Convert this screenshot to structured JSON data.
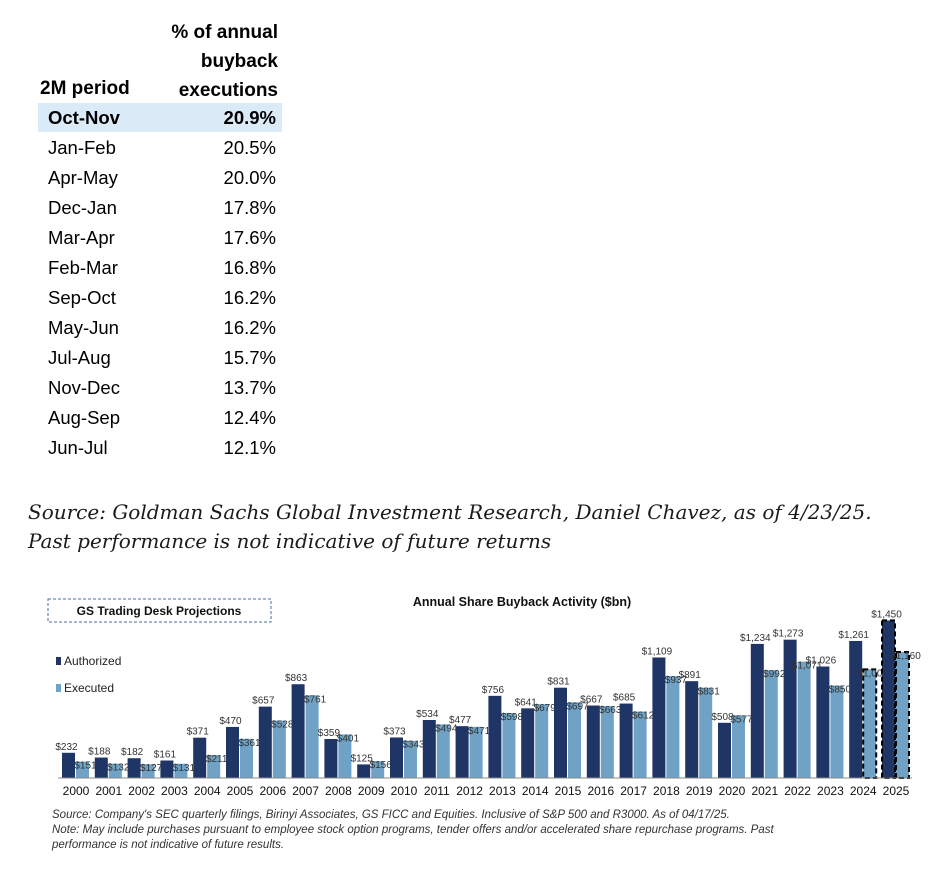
{
  "table": {
    "header_period": "2M period",
    "header_pct": [
      "% of annual",
      "buyback",
      "executions"
    ],
    "rows": [
      {
        "period": "Oct-Nov",
        "value": "20.9%"
      },
      {
        "period": "Jan-Feb",
        "value": "20.5%"
      },
      {
        "period": "Apr-May",
        "value": "20.0%"
      },
      {
        "period": "Dec-Jan",
        "value": "17.8%"
      },
      {
        "period": "Mar-Apr",
        "value": "17.6%"
      },
      {
        "period": "Feb-Mar",
        "value": "16.8%"
      },
      {
        "period": "Sep-Oct",
        "value": "16.2%"
      },
      {
        "period": "May-Jun",
        "value": "16.2%"
      },
      {
        "period": "Jul-Aug",
        "value": "15.7%"
      },
      {
        "period": "Nov-Dec",
        "value": "13.7%"
      },
      {
        "period": "Aug-Sep",
        "value": "12.4%"
      },
      {
        "period": "Jun-Jul",
        "value": "12.1%"
      }
    ],
    "highlight_color": "#dbeaf7"
  },
  "source_note": {
    "line1": "Source: Goldman Sachs Global Investment Research, Daniel Chavez,  as of 4/23/25.",
    "line2": "Past performance is not indicative of future returns"
  },
  "chart_data": {
    "type": "bar",
    "title": "Annual  Share Buyback Activity ($bn)",
    "projection_box": "GS Trading Desk Projections",
    "categories": [
      "2000",
      "2001",
      "2002",
      "2003",
      "2004",
      "2005",
      "2006",
      "2007",
      "2008",
      "2009",
      "2010",
      "2011",
      "2012",
      "2013",
      "2014",
      "2015",
      "2016",
      "2017",
      "2018",
      "2019",
      "2020",
      "2021",
      "2022",
      "2023",
      "2024",
      "2025"
    ],
    "series": [
      {
        "name": "Authorized",
        "color": "#1f3566",
        "values": [
          232,
          188,
          182,
          161,
          371,
          470,
          657,
          863,
          359,
          125,
          373,
          534,
          477,
          756,
          641,
          831,
          667,
          685,
          1109,
          891,
          508,
          1234,
          1273,
          1026,
          1261,
          1450
        ],
        "labels": [
          "$232",
          "$188",
          "$182",
          "$161",
          "$371",
          "$470",
          "$657",
          "$863",
          "$359",
          "$125",
          "$373",
          "$534",
          "$477",
          "$756",
          "$641",
          "$831",
          "$667",
          "$685",
          "$1,109",
          "$891",
          "$508",
          "$1,234",
          "$1,273",
          "$1,026",
          "$1,261",
          "$1,450"
        ]
      },
      {
        "name": "Executed",
        "color": "#6fa2c4",
        "values": [
          151,
          132,
          127,
          131,
          211,
          361,
          528,
          761,
          401,
          156,
          343,
          494,
          471,
          598,
          679,
          697,
          663,
          612,
          937,
          831,
          577,
          992,
          1071,
          850,
          1000,
          1160
        ],
        "labels": [
          "$151",
          "$132",
          "$127",
          "$131",
          "$211",
          "$361",
          "$528",
          "$761",
          "$401",
          "$156",
          "$343",
          "$494",
          "$471",
          "$598",
          "$679",
          "$697",
          "$663",
          "$612",
          "$937",
          "$831",
          "$577",
          "$992",
          "$1,071",
          "$850",
          "$1,000",
          "$1,160"
        ]
      }
    ],
    "projected_categories": [
      "2024",
      "2025"
    ],
    "projected_series_per_category": {
      "2024": [
        "Executed"
      ],
      "2025": [
        "Authorized",
        "Executed"
      ]
    },
    "ylim": [
      0,
      1500
    ],
    "grid": false,
    "legend_placement": "top-left"
  },
  "chart_notes": {
    "line1": "Source: Company's SEC quarterly filings, Birinyi Associates, GS FICC and Equities. Inclusive of S&P 500 and R3000. As of 04/17/25.",
    "line2": "Note: May include purchases pursuant to employee stock option programs, tender offers and/or accelerated share repurchase programs. Past",
    "line3": "performance is not indicative of future results."
  }
}
